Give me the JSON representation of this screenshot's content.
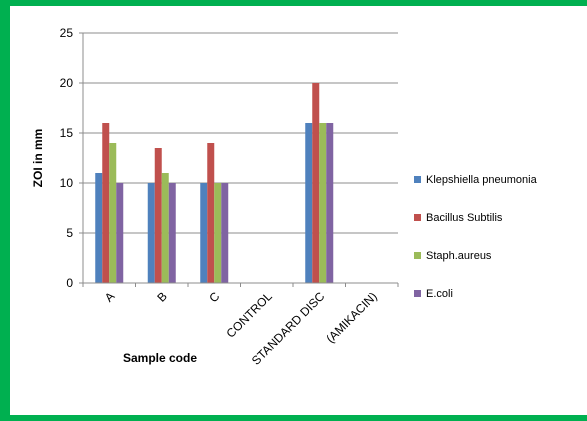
{
  "chart_data": {
    "type": "bar",
    "categories": [
      "A",
      "B",
      "C",
      "CONTROL",
      "STANDARD DISC",
      "(AMIKACIN)"
    ],
    "series": [
      {
        "name": "Klepshiella pneumonia",
        "color": "#4f81bd",
        "values": [
          11,
          10,
          10,
          0,
          16,
          0
        ]
      },
      {
        "name": "Bacillus Subtilis",
        "color": "#c0504d",
        "values": [
          16,
          13.5,
          14,
          0,
          20,
          0
        ]
      },
      {
        "name": "Staph.aureus",
        "color": "#9bbb59",
        "values": [
          14,
          11,
          10,
          0,
          16,
          0
        ]
      },
      {
        "name": "E.coli",
        "color": "#8064a2",
        "values": [
          10,
          10,
          10,
          0,
          16,
          0
        ]
      }
    ],
    "title": "",
    "xlabel": "Sample code",
    "ylabel": "ZOI in mm",
    "ylim": [
      0,
      25
    ],
    "yticks": [
      0,
      5,
      10,
      15,
      20,
      25
    ],
    "grid": true,
    "legend": "right"
  }
}
